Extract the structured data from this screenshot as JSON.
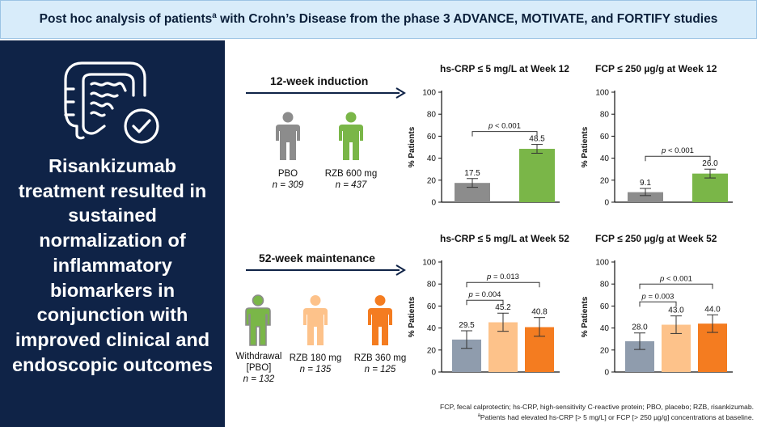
{
  "header": {
    "title_part1": "Post hoc analysis of patients",
    "title_sup": "a",
    "title_part2": " with Crohn’s Disease from the phase 3 ADVANCE, MOTIVATE, and FORTIFY studies"
  },
  "sidebar": {
    "icon": "intestine-check-icon",
    "headline": "Risankizumab treatment resulted in sustained normalization of inflammatory biomarkers in conjunction with improved clinical and endoscopic outcomes"
  },
  "induction": {
    "label": "12-week induction",
    "groups": [
      {
        "name": "PBO",
        "n": "n = 309",
        "color": "#8c8c8c"
      },
      {
        "name": "RZB 600 mg",
        "n": "n = 437",
        "color": "#7ab648"
      }
    ]
  },
  "maintenance": {
    "label": "52-week maintenance",
    "groups": [
      {
        "name": "Withdrawal",
        "name2": "[PBO]",
        "n": "n = 132",
        "color": "#7ab648",
        "outline": "#8c8c8c"
      },
      {
        "name": "RZB 180 mg",
        "n": "n = 135",
        "color": "#fdc28a"
      },
      {
        "name": "RZB 360 mg",
        "n": "n = 125",
        "color": "#f47c20"
      }
    ]
  },
  "chart_data": [
    {
      "type": "bar",
      "title": "hs-CRP ≤ 5 mg/L at Week 12",
      "ylabel": "% Patients",
      "ylim": [
        0,
        100
      ],
      "yticks": [
        0,
        20,
        40,
        60,
        80,
        100
      ],
      "categories": [
        "PBO",
        "RZB 600 mg"
      ],
      "values": [
        17.5,
        48.5
      ],
      "labels": [
        "17.5",
        "48.5"
      ],
      "error_low": [
        13.5,
        44.5
      ],
      "error_high": [
        21.5,
        52.5
      ],
      "colors": [
        "#8c8c8c",
        "#7ab648"
      ],
      "comparisons": [
        {
          "from": 0,
          "to": 1,
          "label": "p < 0.001"
        }
      ]
    },
    {
      "type": "bar",
      "title": "FCP ≤ 250 µg/g at Week 12",
      "ylabel": "% Patients",
      "ylim": [
        0,
        100
      ],
      "yticks": [
        0,
        20,
        40,
        60,
        80,
        100
      ],
      "categories": [
        "PBO",
        "RZB 600 mg"
      ],
      "values": [
        9.1,
        26.0
      ],
      "labels": [
        "9.1",
        "26.0"
      ],
      "error_low": [
        6.0,
        22.0
      ],
      "error_high": [
        12.5,
        30.0
      ],
      "colors": [
        "#8c8c8c",
        "#7ab648"
      ],
      "comparisons": [
        {
          "from": 0,
          "to": 1,
          "label": "p < 0.001"
        }
      ]
    },
    {
      "type": "bar",
      "title": "hs-CRP ≤ 5 mg/L at Week 52",
      "ylabel": "% Patients",
      "ylim": [
        0,
        100
      ],
      "yticks": [
        0,
        20,
        40,
        60,
        80,
        100
      ],
      "categories": [
        "Withdrawal [PBO]",
        "RZB 180 mg",
        "RZB 360 mg"
      ],
      "values": [
        29.5,
        45.2,
        40.8
      ],
      "labels": [
        "29.5",
        "45.2",
        "40.8"
      ],
      "error_low": [
        21.5,
        37.0,
        32.5
      ],
      "error_high": [
        37.5,
        53.5,
        49.5
      ],
      "colors": [
        "#8f9cad",
        "#fdc28a",
        "#f47c20"
      ],
      "comparisons": [
        {
          "from": 0,
          "to": 1,
          "label": "p = 0.004"
        },
        {
          "from": 0,
          "to": 2,
          "label": "p = 0.013"
        }
      ]
    },
    {
      "type": "bar",
      "title": "FCP ≤ 250 µg/g at Week 52",
      "ylabel": "% Patients",
      "ylim": [
        0,
        100
      ],
      "yticks": [
        0,
        20,
        40,
        60,
        80,
        100
      ],
      "categories": [
        "Withdrawal [PBO]",
        "RZB 180 mg",
        "RZB 360 mg"
      ],
      "values": [
        28.0,
        43.0,
        44.0
      ],
      "labels": [
        "28.0",
        "43.0",
        "44.0"
      ],
      "error_low": [
        20.5,
        35.0,
        36.0
      ],
      "error_high": [
        35.5,
        51.0,
        52.0
      ],
      "colors": [
        "#8f9cad",
        "#fdc28a",
        "#f47c20"
      ],
      "comparisons": [
        {
          "from": 0,
          "to": 1,
          "label": "p = 0.003"
        },
        {
          "from": 0,
          "to": 2,
          "label": "p < 0.001"
        }
      ]
    }
  ],
  "footnote": {
    "line1": "FCP, fecal calprotectin; hs-CRP, high-sensitivity C-reactive protein; PBO, placebo; RZB, risankizumab.",
    "line2_sup": "a",
    "line2": "Patients had elevated hs-CRP [> 5 mg/L] or FCP [> 250 µg/g] concentrations at baseline."
  }
}
